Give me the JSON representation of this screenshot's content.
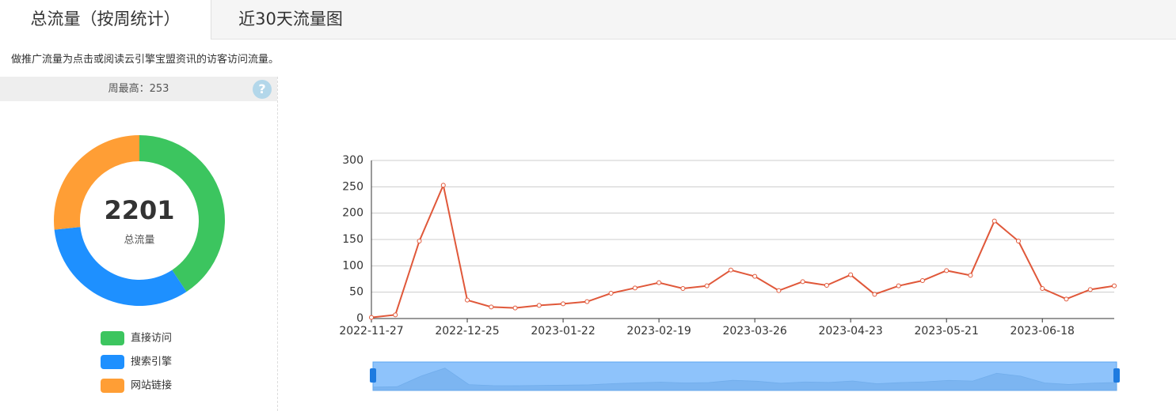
{
  "tabs": [
    "总流量（按周统计）",
    "近30天流量图"
  ],
  "note": "做推广流量为点击或阅读云引擎宝盟资讯的访客访问流量。",
  "weekly_max": "周最高：253",
  "chart_data": [
    {
      "type": "pie",
      "center_value": 2201,
      "center_label": "总流量",
      "categories": [
        "直接访问",
        "搜索引擎",
        "网站链接"
      ],
      "values": [
        896,
        717,
        588
      ],
      "colors": [
        "#3cc55f",
        "#1e90ff",
        "#ff9e35"
      ]
    },
    {
      "type": "line",
      "color": "#e0583a",
      "categories": [
        "2022-11-27",
        null,
        null,
        null,
        "2022-12-25",
        null,
        null,
        null,
        "2023-01-22",
        null,
        null,
        null,
        "2023-02-19",
        null,
        null,
        null,
        "2023-03-26",
        null,
        null,
        null,
        "2023-04-23",
        null,
        null,
        null,
        "2023-05-21",
        null,
        null,
        null,
        "2023-06-18",
        null,
        null,
        null
      ],
      "values": [
        2,
        7,
        147,
        253,
        35,
        22,
        20,
        25,
        28,
        32,
        48,
        58,
        68,
        57,
        62,
        92,
        80,
        53,
        70,
        63,
        83,
        46,
        62,
        72,
        91,
        82,
        185,
        147,
        57,
        37,
        55,
        62
      ],
      "ylim": [
        0,
        300
      ],
      "yticks": [
        0,
        50,
        100,
        150,
        200,
        250,
        300
      ],
      "grid": true
    }
  ]
}
